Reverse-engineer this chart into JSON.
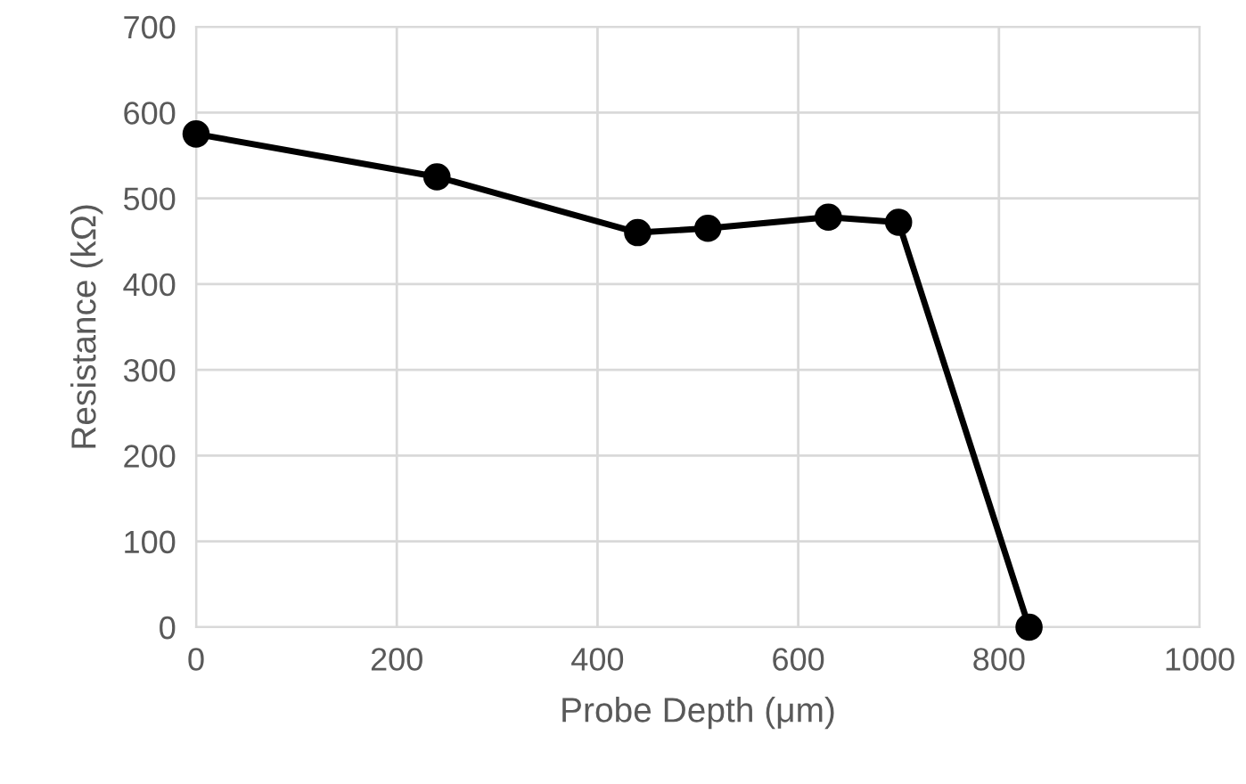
{
  "chart_data": {
    "type": "line",
    "xlabel": "Probe Depth (μm)",
    "ylabel": "Resistance (kΩ)",
    "x": [
      0,
      240,
      440,
      510,
      630,
      700,
      830
    ],
    "series": [
      {
        "color": "#000000",
        "values": [
          575,
          525,
          460,
          465,
          478,
          472,
          0
        ]
      }
    ],
    "xlim": [
      0,
      1000
    ],
    "xticks": [
      0,
      200,
      400,
      600,
      800,
      1000
    ],
    "ylim": [
      0,
      700
    ],
    "yticks": [
      0,
      100,
      200,
      300,
      400,
      500,
      600,
      700
    ],
    "grid": true,
    "marker": "circle",
    "line_style": "solid",
    "legend": false
  }
}
